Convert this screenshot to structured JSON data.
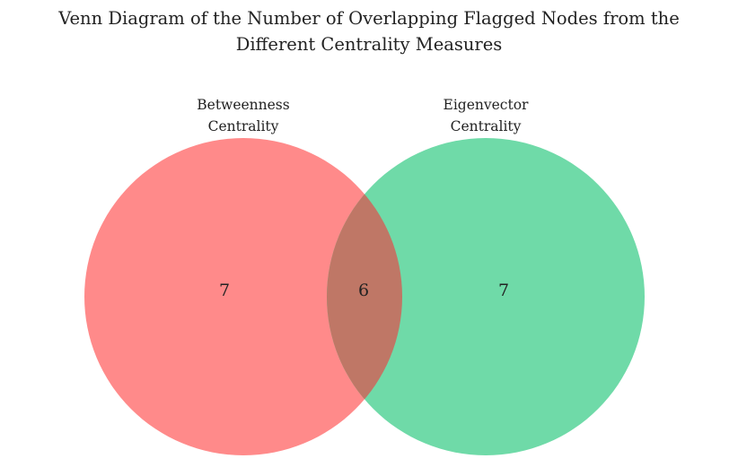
{
  "title": {
    "line1": "Venn Diagram of the Number of Overlapping Flagged Nodes from the",
    "line2": "Different Centrality Measures"
  },
  "sets": {
    "left": {
      "label_line1": "Betweenness",
      "label_line2": "Centrality",
      "color": "#ff6666",
      "only_count": "7"
    },
    "right": {
      "label_line1": "Eigenvector",
      "label_line2": "Centrality",
      "color": "#40d08a",
      "only_count": "7"
    },
    "overlap": {
      "count": "6",
      "color": "#bf7766"
    }
  }
}
